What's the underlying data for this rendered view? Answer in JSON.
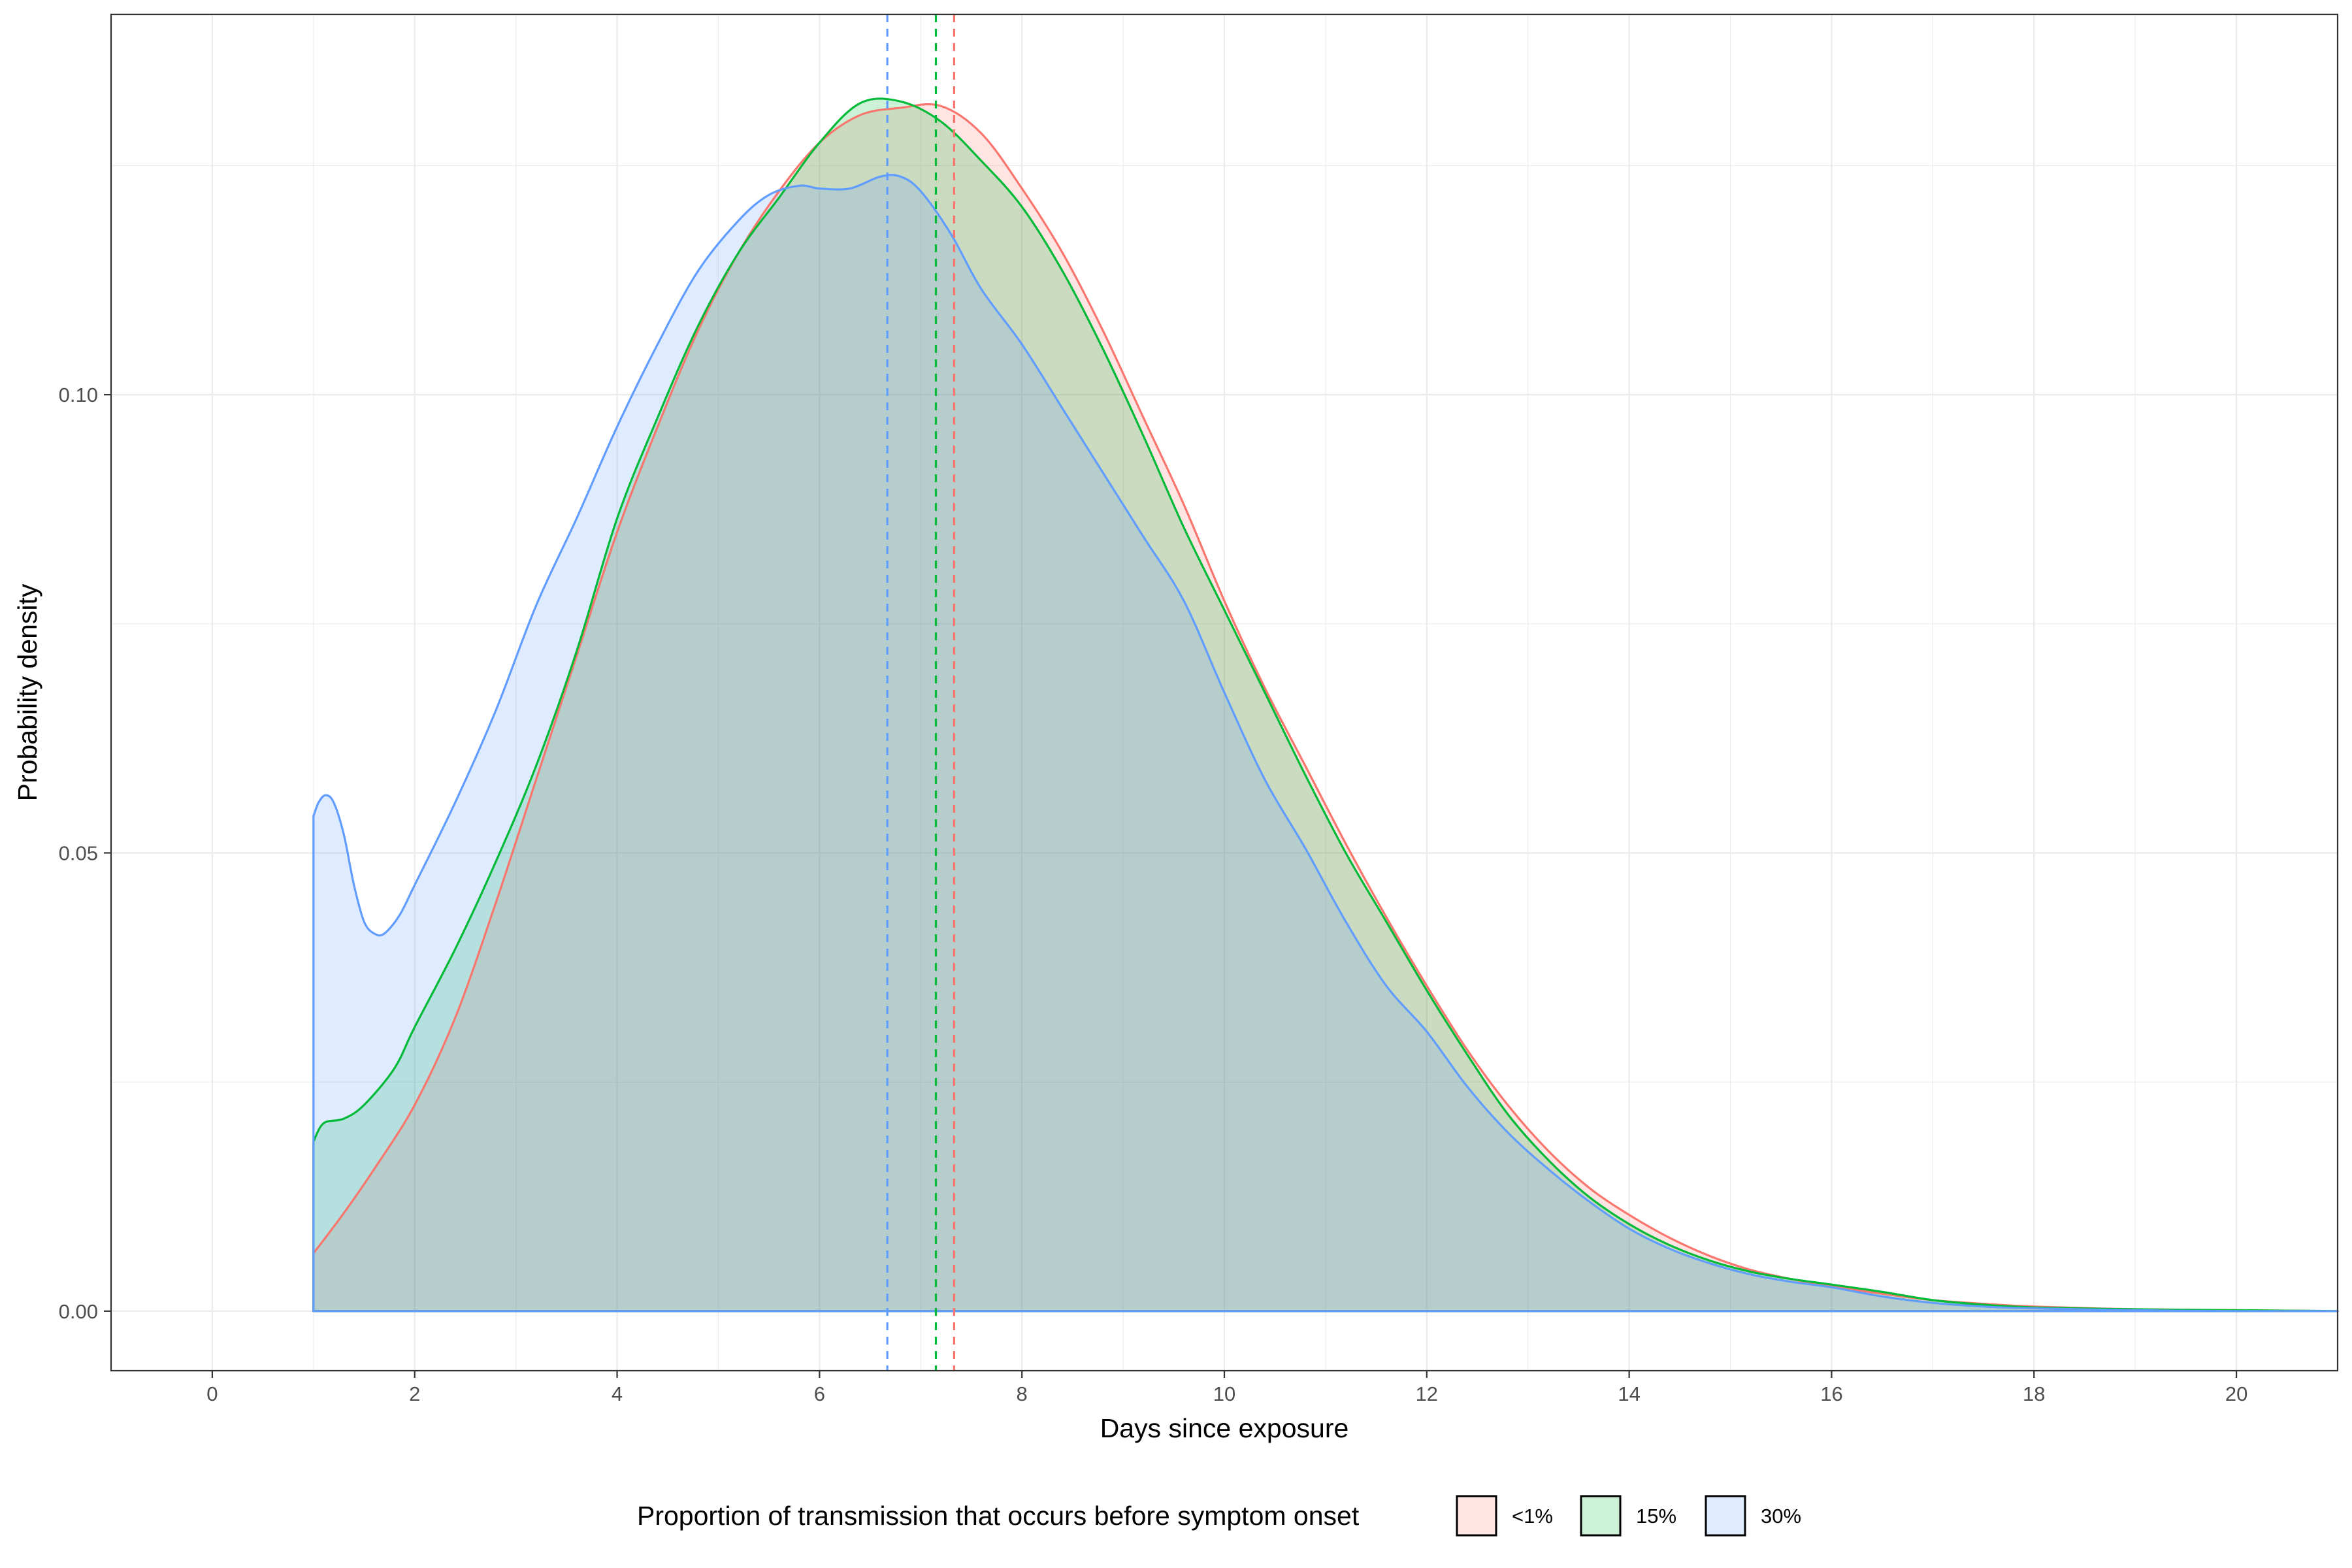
{
  "chart_data": {
    "type": "area",
    "title": "",
    "xlabel": "Days since exposure",
    "ylabel": "Probability density",
    "xlim": [
      -1,
      21
    ],
    "ylim": [
      -0.0065,
      0.1415
    ],
    "x_ticks": [
      0,
      2,
      4,
      6,
      8,
      10,
      12,
      14,
      16,
      18,
      20
    ],
    "x_tick_labels": [
      "0",
      "2",
      "4",
      "6",
      "8",
      "10",
      "12",
      "14",
      "16",
      "18",
      "20"
    ],
    "y_ticks": [
      0.0,
      0.05,
      0.1
    ],
    "y_tick_labels": [
      "0.00",
      "0.05",
      "0.10"
    ],
    "grid": true,
    "legend": {
      "title": "Proportion of transmission that occurs before symptom onset",
      "position": "bottom"
    },
    "series": [
      {
        "name": "<1%",
        "color": "#F8766D",
        "fill": "#FFE0E0",
        "mean_line": 7.33,
        "points": [
          [
            1.0,
            0.0063
          ],
          [
            1.3,
            0.0107
          ],
          [
            1.6,
            0.0155
          ],
          [
            2.0,
            0.0225
          ],
          [
            2.4,
            0.032
          ],
          [
            2.8,
            0.0445
          ],
          [
            3.2,
            0.058
          ],
          [
            3.6,
            0.0715
          ],
          [
            4.0,
            0.085
          ],
          [
            4.4,
            0.0965
          ],
          [
            4.8,
            0.107
          ],
          [
            5.2,
            0.1155
          ],
          [
            5.6,
            0.1222
          ],
          [
            6.0,
            0.1275
          ],
          [
            6.4,
            0.1305
          ],
          [
            6.8,
            0.1313
          ],
          [
            7.2,
            0.1315
          ],
          [
            7.6,
            0.1285
          ],
          [
            8.0,
            0.1225
          ],
          [
            8.4,
            0.1155
          ],
          [
            8.8,
            0.107
          ],
          [
            9.2,
            0.0975
          ],
          [
            9.6,
            0.088
          ],
          [
            10.0,
            0.0775
          ],
          [
            10.4,
            0.068
          ],
          [
            10.8,
            0.0595
          ],
          [
            11.2,
            0.051
          ],
          [
            11.6,
            0.043
          ],
          [
            12.0,
            0.0355
          ],
          [
            12.4,
            0.0285
          ],
          [
            12.8,
            0.0225
          ],
          [
            13.2,
            0.0175
          ],
          [
            13.6,
            0.0135
          ],
          [
            14.0,
            0.0105
          ],
          [
            14.4,
            0.008
          ],
          [
            14.8,
            0.006
          ],
          [
            15.2,
            0.0045
          ],
          [
            15.6,
            0.0035
          ],
          [
            16.0,
            0.0027
          ],
          [
            16.5,
            0.0019
          ],
          [
            17.0,
            0.0012
          ],
          [
            17.5,
            0.0008
          ],
          [
            18.0,
            0.0005
          ],
          [
            19.0,
            0.0002
          ],
          [
            20.0,
            0.0001
          ],
          [
            21.0,
            0.0
          ]
        ]
      },
      {
        "name": "15%",
        "color": "#00BA38",
        "fill": "#CCEFD5",
        "mean_line": 7.15,
        "points": [
          [
            1.0,
            0.0185
          ],
          [
            1.1,
            0.0205
          ],
          [
            1.3,
            0.021
          ],
          [
            1.5,
            0.0225
          ],
          [
            1.8,
            0.0265
          ],
          [
            2.0,
            0.031
          ],
          [
            2.4,
            0.0395
          ],
          [
            2.8,
            0.049
          ],
          [
            3.2,
            0.0595
          ],
          [
            3.6,
            0.072
          ],
          [
            4.0,
            0.0865
          ],
          [
            4.4,
            0.0975
          ],
          [
            4.8,
            0.1075
          ],
          [
            5.2,
            0.1155
          ],
          [
            5.6,
            0.1215
          ],
          [
            6.0,
            0.1275
          ],
          [
            6.4,
            0.1318
          ],
          [
            6.8,
            0.132
          ],
          [
            7.2,
            0.1298
          ],
          [
            7.6,
            0.1255
          ],
          [
            8.0,
            0.1205
          ],
          [
            8.4,
            0.1135
          ],
          [
            8.8,
            0.105
          ],
          [
            9.2,
            0.0955
          ],
          [
            9.6,
            0.0855
          ],
          [
            10.0,
            0.0765
          ],
          [
            10.4,
            0.0675
          ],
          [
            10.8,
            0.0585
          ],
          [
            11.2,
            0.05
          ],
          [
            11.6,
            0.0425
          ],
          [
            12.0,
            0.035
          ],
          [
            12.4,
            0.028
          ],
          [
            12.8,
            0.0215
          ],
          [
            13.2,
            0.0165
          ],
          [
            13.6,
            0.0125
          ],
          [
            14.0,
            0.0095
          ],
          [
            14.4,
            0.0072
          ],
          [
            14.8,
            0.0055
          ],
          [
            15.2,
            0.0043
          ],
          [
            15.6,
            0.0035
          ],
          [
            16.0,
            0.0029
          ],
          [
            16.5,
            0.0021
          ],
          [
            17.0,
            0.0012
          ],
          [
            17.5,
            0.0007
          ],
          [
            18.0,
            0.0004
          ],
          [
            19.0,
            0.0002
          ],
          [
            20.0,
            0.0001
          ],
          [
            21.0,
            0.0
          ]
        ]
      },
      {
        "name": "30%",
        "color": "#619CFF",
        "fill": "#DDE8FC",
        "mean_line": 6.67,
        "points": [
          [
            1.0,
            0.054
          ],
          [
            1.05,
            0.0555
          ],
          [
            1.12,
            0.0563
          ],
          [
            1.2,
            0.0555
          ],
          [
            1.3,
            0.052
          ],
          [
            1.4,
            0.0465
          ],
          [
            1.5,
            0.0425
          ],
          [
            1.6,
            0.0412
          ],
          [
            1.7,
            0.0412
          ],
          [
            1.85,
            0.0432
          ],
          [
            2.0,
            0.0465
          ],
          [
            2.4,
            0.0555
          ],
          [
            2.8,
            0.0655
          ],
          [
            3.2,
            0.077
          ],
          [
            3.6,
            0.0865
          ],
          [
            4.0,
            0.0965
          ],
          [
            4.4,
            0.1055
          ],
          [
            4.8,
            0.1135
          ],
          [
            5.2,
            0.119
          ],
          [
            5.5,
            0.1218
          ],
          [
            5.8,
            0.1228
          ],
          [
            6.0,
            0.1225
          ],
          [
            6.3,
            0.1225
          ],
          [
            6.6,
            0.1238
          ],
          [
            6.8,
            0.1238
          ],
          [
            7.0,
            0.1222
          ],
          [
            7.3,
            0.1175
          ],
          [
            7.6,
            0.1115
          ],
          [
            8.0,
            0.1055
          ],
          [
            8.4,
            0.0985
          ],
          [
            8.8,
            0.0915
          ],
          [
            9.2,
            0.0845
          ],
          [
            9.6,
            0.0775
          ],
          [
            10.0,
            0.0675
          ],
          [
            10.4,
            0.058
          ],
          [
            10.8,
            0.0505
          ],
          [
            11.2,
            0.0425
          ],
          [
            11.6,
            0.0355
          ],
          [
            12.0,
            0.0305
          ],
          [
            12.4,
            0.0245
          ],
          [
            12.8,
            0.0195
          ],
          [
            13.2,
            0.0155
          ],
          [
            13.6,
            0.012
          ],
          [
            14.0,
            0.009
          ],
          [
            14.4,
            0.0068
          ],
          [
            14.8,
            0.0052
          ],
          [
            15.2,
            0.004
          ],
          [
            15.6,
            0.0032
          ],
          [
            16.0,
            0.0026
          ],
          [
            16.5,
            0.0016
          ],
          [
            17.0,
            0.0009
          ],
          [
            17.5,
            0.0005
          ],
          [
            18.0,
            0.0003
          ],
          [
            19.0,
            0.0001
          ],
          [
            20.0,
            0.0
          ],
          [
            21.0,
            0.0
          ]
        ]
      }
    ]
  }
}
